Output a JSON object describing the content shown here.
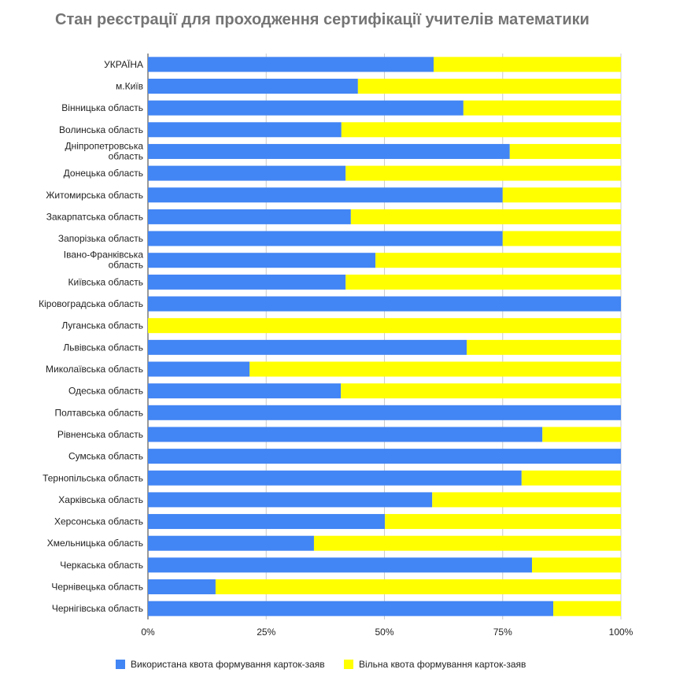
{
  "chart_data": {
    "type": "bar",
    "orientation": "horizontal",
    "stacked": "percent",
    "title": "Стан реєстрації для проходження сертифікації учителів математики",
    "xlabel": "",
    "ylabel": "",
    "xlim": [
      0,
      100
    ],
    "x_ticks": [
      "0%",
      "25%",
      "50%",
      "75%",
      "100%"
    ],
    "grid": true,
    "legend_position": "bottom",
    "categories": [
      "УКРАЇНА",
      "м.Київ",
      "Вінницька область",
      "Волинська область",
      "Дніпропетровська область",
      "Донецька область",
      "Житомирська область",
      "Закарпатська область",
      "Запорізька область",
      "Івано-Франківська область",
      "Київська область",
      "Кіровоградська область",
      "Луганська область",
      "Львівська область",
      "Миколаївська область",
      "Одеська область",
      "Полтавська область",
      "Рівненська область",
      "Сумська область",
      "Тернопільська область",
      "Харківська область",
      "Херсонська область",
      "Хмельницька область",
      "Черкаська область",
      "Чернівецька область",
      "Чернігівська область"
    ],
    "series": [
      {
        "name": "Використана квота формування карток-заяв",
        "color": "#4285f4",
        "values": [
          60.4,
          44.4,
          66.7,
          40.9,
          76.5,
          41.8,
          75.0,
          42.9,
          75.0,
          48.1,
          41.8,
          100,
          0,
          67.4,
          21.5,
          40.8,
          100,
          83.4,
          100,
          79.0,
          60.1,
          50.1,
          35.1,
          81.2,
          14.3,
          85.7
        ]
      },
      {
        "name": "Вільна квота формування карток-заяв",
        "color": "#ffff00",
        "values": [
          39.6,
          55.6,
          33.3,
          59.1,
          23.5,
          58.2,
          25.0,
          57.1,
          25.0,
          51.9,
          58.2,
          0,
          100,
          32.6,
          78.5,
          59.2,
          0,
          16.6,
          0,
          21.0,
          39.9,
          49.9,
          64.9,
          18.8,
          85.7,
          14.3
        ]
      }
    ]
  }
}
